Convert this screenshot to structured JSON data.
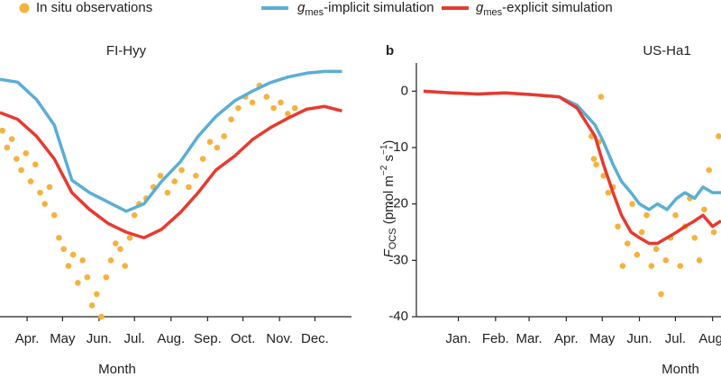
{
  "chart_data": [
    {
      "type": "line",
      "title": "FI-Hyy",
      "xlabel": "Month",
      "xlim": [
        82,
        380
      ],
      "ylim": [
        -40,
        5
      ],
      "xticks": [
        {
          "value": 105,
          "label": "Apr."
        },
        {
          "value": 135,
          "label": "May"
        },
        {
          "value": 166,
          "label": "Jun."
        },
        {
          "value": 196,
          "label": "Jul."
        },
        {
          "value": 227,
          "label": "Aug."
        },
        {
          "value": 258,
          "label": "Sep."
        },
        {
          "value": 288,
          "label": "Oct."
        },
        {
          "value": 319,
          "label": "Nov."
        },
        {
          "value": 349,
          "label": "Dec."
        }
      ],
      "series": [
        {
          "name": "In situ observations",
          "type": "scatter",
          "color": "#f4b23e",
          "x": [
            84,
            88,
            92,
            96,
            100,
            104,
            108,
            112,
            116,
            120,
            124,
            128,
            132,
            136,
            140,
            144,
            148,
            152,
            156,
            160,
            164,
            168,
            172,
            176,
            180,
            184,
            188,
            192,
            196,
            200,
            206,
            212,
            218,
            224,
            230,
            236,
            242,
            248,
            254,
            260,
            266,
            272,
            278,
            284,
            290,
            296,
            302,
            308,
            314,
            320,
            326,
            332
          ],
          "values": [
            -7,
            -10,
            -8.5,
            -12,
            -14,
            -11,
            -16,
            -13,
            -18,
            -20,
            -17,
            -22,
            -26,
            -28,
            -31,
            -29,
            -34,
            -30,
            -33,
            -38,
            -36,
            -40,
            -33,
            -30,
            -27,
            -28,
            -31,
            -26,
            -22,
            -20,
            -19,
            -17,
            -15,
            -18,
            -16,
            -14,
            -17,
            -15,
            -12,
            -9,
            -10,
            -8,
            -5,
            -3,
            -1,
            -2,
            1,
            -1,
            -3,
            -2,
            -4,
            -3
          ]
        },
        {
          "name": [
            "g",
            "mes",
            "-implicit simulation"
          ],
          "type": "line",
          "color": "#5aaed6",
          "x": [
            82,
            97,
            113,
            128,
            143,
            158,
            174,
            189,
            204,
            219,
            235,
            250,
            265,
            281,
            296,
            311,
            326,
            342,
            357,
            372
          ],
          "values": [
            2.1,
            1.6,
            -1.5,
            -6,
            -15.8,
            -18,
            -19.7,
            -21.3,
            -20,
            -16,
            -12.5,
            -8,
            -4.5,
            -1.7,
            0,
            1.5,
            2.5,
            3.2,
            3.5,
            3.5
          ]
        },
        {
          "name": [
            "g",
            "mes",
            "-explicit simulation"
          ],
          "type": "line",
          "color": "#e8392f",
          "x": [
            82,
            97,
            113,
            128,
            143,
            158,
            174,
            189,
            204,
            219,
            235,
            250,
            265,
            281,
            296,
            311,
            326,
            342,
            357,
            372
          ],
          "values": [
            -3.8,
            -5,
            -8,
            -12,
            -18,
            -21,
            -23.5,
            -25,
            -26,
            -24.5,
            -21.5,
            -18,
            -14,
            -11.5,
            -8.6,
            -6.5,
            -4.8,
            -3.2,
            -2.7,
            -3.5
          ]
        }
      ]
    },
    {
      "type": "line",
      "panel": "b",
      "title": "US-Ha1",
      "xlabel": "Month",
      "ylabel": [
        "F",
        "OCS",
        " (pmol m",
        "−2",
        " s",
        "−1",
        ")"
      ],
      "xlim": [
        -20,
        234
      ],
      "ylim": [
        -40,
        5
      ],
      "yticks": [
        0,
        -10,
        -20,
        -30,
        -40
      ],
      "xticks": [
        {
          "value": 15,
          "label": "Jan."
        },
        {
          "value": 46,
          "label": "Feb."
        },
        {
          "value": 74,
          "label": "Mar."
        },
        {
          "value": 105,
          "label": "Apr."
        },
        {
          "value": 135,
          "label": "May"
        },
        {
          "value": 166,
          "label": "Jun."
        },
        {
          "value": 196,
          "label": "Jul."
        },
        {
          "value": 227,
          "label": "Aug."
        }
      ],
      "series": [
        {
          "type": "scatter",
          "color": "#f4b23e",
          "x": [
            126,
            128,
            130,
            132,
            134,
            136,
            140,
            144,
            148,
            152,
            156,
            160,
            164,
            168,
            172,
            176,
            180,
            184,
            188,
            192,
            196,
            200,
            204,
            208,
            212,
            216,
            220,
            224,
            228,
            232
          ],
          "values": [
            -8,
            -12,
            -13,
            -9,
            -1,
            -15,
            -18,
            -17,
            -24,
            -31,
            -27,
            -20,
            -29,
            -25,
            -22,
            -31,
            -28,
            -36,
            -30,
            -26,
            -22,
            -31,
            -24,
            -19,
            -26,
            -30,
            -21,
            -14,
            -25,
            -8
          ]
        },
        {
          "type": "line",
          "color": "#5aaed6",
          "x": [
            -14,
            9,
            31,
            54,
            76,
            99,
            114,
            129,
            136,
            144,
            151,
            159,
            166,
            174,
            181,
            189,
            197,
            204,
            212,
            219,
            227,
            234
          ],
          "values": [
            0,
            -0.3,
            -0.5,
            -0.3,
            -0.6,
            -1,
            -2.5,
            -6,
            -9,
            -13,
            -16,
            -18,
            -20,
            -21,
            -20,
            -21,
            -19,
            -18,
            -19,
            -17,
            -18,
            -18
          ]
        },
        {
          "type": "line",
          "color": "#e8392f",
          "x": [
            -14,
            9,
            31,
            54,
            76,
            99,
            114,
            129,
            136,
            144,
            151,
            159,
            166,
            174,
            181,
            189,
            197,
            204,
            212,
            219,
            227,
            234
          ],
          "values": [
            0,
            -0.3,
            -0.5,
            -0.3,
            -0.6,
            -1,
            -3,
            -8,
            -13,
            -18,
            -22,
            -25,
            -26,
            -27,
            -27,
            -26,
            -25,
            -24,
            -23,
            -22,
            -24,
            -23
          ]
        }
      ]
    }
  ]
}
